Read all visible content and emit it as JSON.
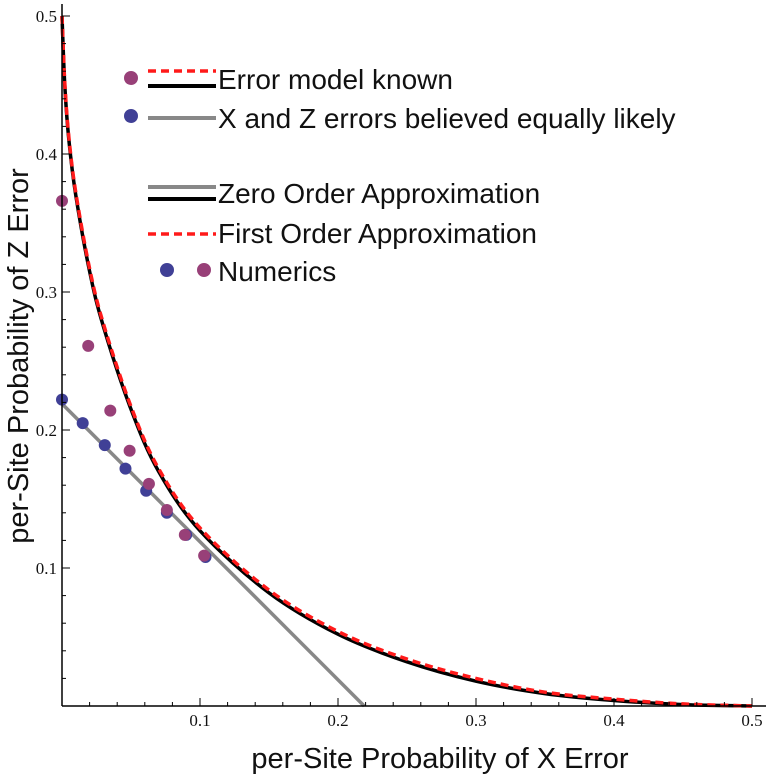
{
  "chart_data": {
    "type": "line",
    "xlabel": "per-Site Probability of X Error",
    "ylabel": "per-Site Probability of Z Error",
    "xlim": [
      0,
      0.5
    ],
    "ylim": [
      0,
      0.5
    ],
    "xticks": [
      0.1,
      0.2,
      0.3,
      0.4,
      0.5
    ],
    "yticks": [
      0.1,
      0.2,
      0.3,
      0.4,
      0.5
    ],
    "xtick_labels": [
      "0.1",
      "0.2",
      "0.3",
      "0.4",
      "0.5"
    ],
    "ytick_labels": [
      "0.1",
      "0.2",
      "0.3",
      "0.4",
      "0.5"
    ],
    "legend": {
      "placement": "top-right",
      "entries": [
        "Error model known",
        "X and Z errors believed equally likely",
        "Zero Order Approximation",
        "First Order Approximation",
        "Numerics"
      ]
    },
    "series": [
      {
        "name": "Zero Order Approximation",
        "color": "#000000",
        "style": "solid",
        "x": [
          0.0,
          0.002,
          0.005,
          0.01,
          0.02,
          0.03,
          0.05,
          0.07,
          0.1,
          0.15,
          0.2,
          0.25,
          0.3,
          0.35,
          0.4,
          0.45,
          0.5
        ],
        "y": [
          0.5,
          0.45,
          0.41,
          0.37,
          0.315,
          0.275,
          0.215,
          0.17,
          0.127,
          0.082,
          0.052,
          0.032,
          0.018,
          0.009,
          0.004,
          0.001,
          0.0
        ]
      },
      {
        "name": "First Order Approximation",
        "color": "#ff1a1a",
        "style": "dashed",
        "x": [
          0.0,
          0.002,
          0.005,
          0.01,
          0.02,
          0.03,
          0.05,
          0.07,
          0.1,
          0.15,
          0.2,
          0.25,
          0.3,
          0.35,
          0.4,
          0.45,
          0.5
        ],
        "y": [
          0.5,
          0.452,
          0.412,
          0.372,
          0.317,
          0.277,
          0.217,
          0.172,
          0.129,
          0.084,
          0.054,
          0.034,
          0.02,
          0.01,
          0.005,
          0.0015,
          0.0
        ]
      },
      {
        "name": "X and Z errors believed equally likely",
        "color": "#888888",
        "style": "solid",
        "x": [
          0.0,
          0.219
        ],
        "y": [
          0.219,
          0.0
        ]
      },
      {
        "name": "Numerics",
        "color": "#404096",
        "style": "points",
        "x": [
          0.0,
          0.015,
          0.031,
          0.046,
          0.061,
          0.076,
          0.09,
          0.104
        ],
        "y": [
          0.222,
          0.205,
          0.189,
          0.172,
          0.156,
          0.14,
          0.124,
          0.108
        ]
      },
      {
        "name": "Numerics",
        "color": "#984078",
        "style": "points",
        "x": [
          0.0,
          0.019,
          0.035,
          0.049,
          0.063,
          0.076,
          0.089,
          0.103
        ],
        "y": [
          0.366,
          0.261,
          0.214,
          0.185,
          0.161,
          0.142,
          0.124,
          0.109
        ]
      }
    ]
  },
  "legend_items": {
    "error_model_known": "Error model known",
    "equal_belief": "X and Z errors believed equally likely",
    "zero_order": "Zero Order Approximation",
    "first_order": "First Order Approximation",
    "numerics": "Numerics"
  },
  "colors": {
    "zero_order": "#000000",
    "first_order": "#ff1a1a",
    "equal_line": "#888888",
    "numerics_blue": "#404096",
    "numerics_purple": "#984078"
  }
}
